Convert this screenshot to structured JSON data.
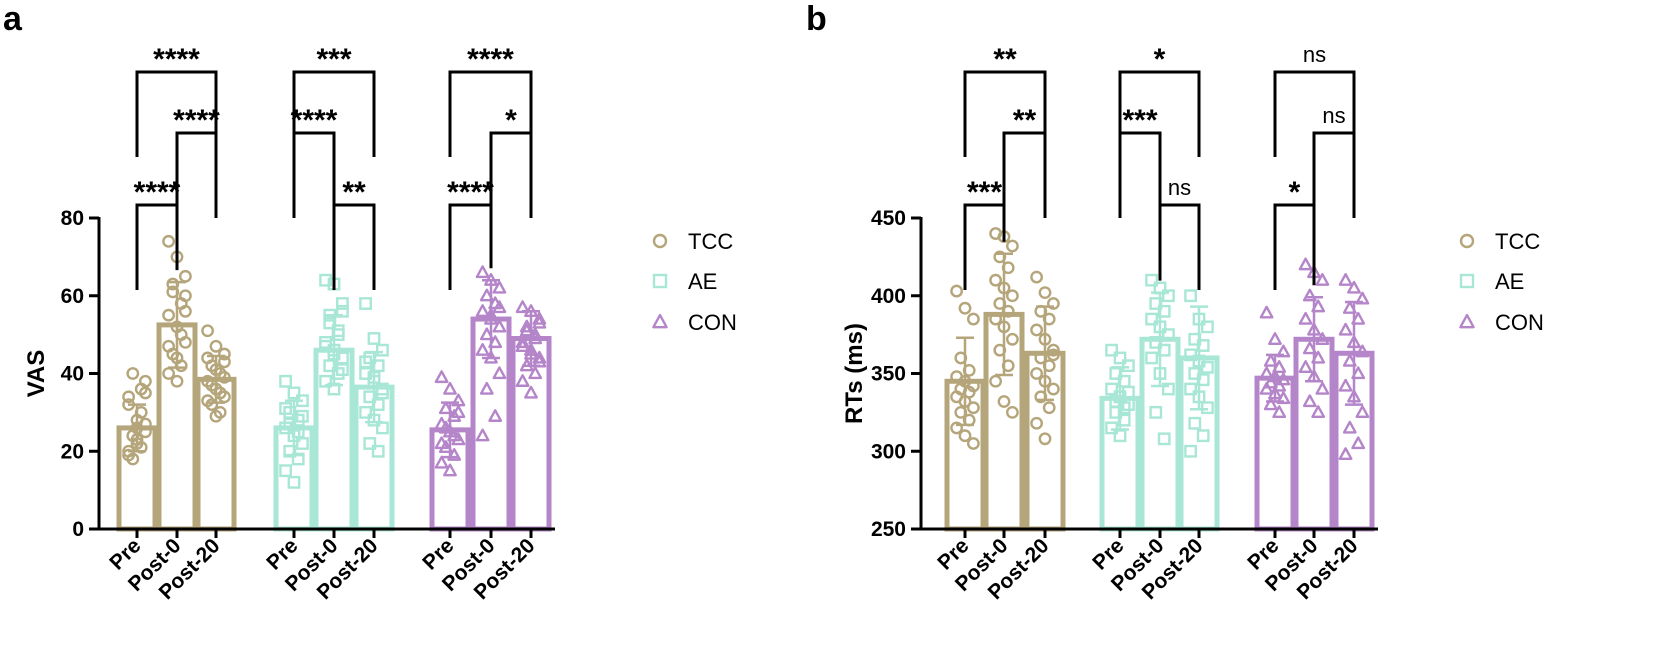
{
  "figure": {
    "panels": [
      "a",
      "b"
    ]
  },
  "groups": [
    {
      "name": "TCC",
      "color": "#B5A57A",
      "marker": "circle"
    },
    {
      "name": "AE",
      "color": "#A8E6D6",
      "marker": "square"
    },
    {
      "name": "CON",
      "color": "#B585C9",
      "marker": "triangle"
    }
  ],
  "chart_data": [
    {
      "panel": "a",
      "type": "bar",
      "ylabel": "VAS",
      "xlabel": "",
      "ylim": [
        0,
        80
      ],
      "yticks": [
        0,
        20,
        40,
        60,
        80
      ],
      "categories": [
        "Pre",
        "Post-0",
        "Post-20"
      ],
      "legend_position": "right",
      "series": [
        {
          "name": "TCC",
          "values": [
            26,
            52.5,
            38.5
          ],
          "sd": [
            6,
            11,
            6
          ],
          "points": [
            [
              20,
              22,
              25,
              18,
              30,
              34,
              28,
              38,
              24,
              36,
              19,
              23,
              27,
              40,
              21,
              32,
              26,
              35
            ],
            [
              74,
              70,
              65,
              61,
              58,
              55,
              52,
              48,
              45,
              42,
              40,
              38,
              60,
              63,
              50,
              47,
              44,
              56
            ],
            [
              51,
              47,
              45,
              42,
              40,
              38,
              36,
              34,
              32,
              30,
              44,
              41,
              39,
              37,
              35,
              33,
              29,
              43
            ]
          ]
        },
        {
          "name": "AE",
          "values": [
            26,
            46,
            36.5
          ],
          "sd": [
            7,
            9,
            9
          ],
          "points": [
            [
              38,
              35,
              33,
              30,
              28,
              26,
              24,
              22,
              20,
              18,
              15,
              12,
              29,
              27,
              25,
              31
            ],
            [
              64,
              63,
              56,
              53,
              50,
              48,
              46,
              44,
              42,
              40,
              38,
              36,
              58,
              55,
              51,
              47,
              45,
              41
            ],
            [
              58,
              49,
              46,
              44,
              42,
              40,
              38,
              36,
              34,
              32,
              30,
              28,
              26,
              22,
              20,
              43,
              39,
              35
            ]
          ]
        },
        {
          "name": "CON",
          "values": [
            25.5,
            54,
            49
          ],
          "sd": [
            7,
            10,
            7
          ],
          "points": [
            [
              39,
              36,
              33,
              31,
              29,
              27,
              25,
              23,
              21,
              19,
              17,
              15,
              30,
              26,
              24,
              22
            ],
            [
              66,
              64,
              62,
              60,
              58,
              56,
              54,
              52,
              50,
              48,
              46,
              44,
              40,
              36,
              29,
              24,
              55,
              57
            ],
            [
              57,
              56,
              54,
              52,
              50,
              48,
              46,
              44,
              42,
              40,
              38,
              35,
              53,
              51,
              49,
              47,
              45,
              43
            ]
          ]
        }
      ],
      "annotations": [
        {
          "group": "TCC",
          "from": 0,
          "to": 2,
          "label": "****"
        },
        {
          "group": "TCC",
          "from": 1,
          "to": 2,
          "label": "****"
        },
        {
          "group": "TCC",
          "from": 0,
          "to": 1,
          "label": "****"
        },
        {
          "group": "AE",
          "from": 0,
          "to": 2,
          "label": "***"
        },
        {
          "group": "AE",
          "from": 0,
          "to": 1,
          "label": "****"
        },
        {
          "group": "AE",
          "from": 1,
          "to": 2,
          "label": "**"
        },
        {
          "group": "CON",
          "from": 0,
          "to": 2,
          "label": "****"
        },
        {
          "group": "CON",
          "from": 1,
          "to": 2,
          "label": "*"
        },
        {
          "group": "CON",
          "from": 0,
          "to": 1,
          "label": "****"
        }
      ]
    },
    {
      "panel": "b",
      "type": "bar",
      "ylabel": "RTs (ms)",
      "xlabel": "",
      "ylim": [
        250,
        450
      ],
      "yticks": [
        250,
        300,
        350,
        400,
        450
      ],
      "categories": [
        "Pre",
        "Post-0",
        "Post-20"
      ],
      "legend_position": "right",
      "series": [
        {
          "name": "TCC",
          "values": [
            345,
            388,
            363
          ],
          "sd": [
            28,
            39,
            30
          ],
          "points": [
            [
              403,
              392,
              385,
              360,
              352,
              348,
              345,
              342,
              340,
              338,
              335,
              332,
              328,
              325,
              320,
              315,
              310,
              305
            ],
            [
              440,
              438,
              432,
              425,
              418,
              410,
              405,
              400,
              395,
              390,
              385,
              380,
              372,
              365,
              355,
              345,
              332,
              325
            ],
            [
              412,
              402,
              395,
              390,
              385,
              378,
              372,
              365,
              360,
              355,
              350,
              345,
              340,
              335,
              328,
              318,
              308,
              362
            ]
          ]
        },
        {
          "name": "AE",
          "values": [
            334,
            372,
            360
          ],
          "sd": [
            20,
            30,
            33
          ],
          "points": [
            [
              365,
              360,
              355,
              350,
              345,
              340,
              335,
              330,
              325,
              320,
              315,
              310,
              338,
              332,
              328
            ],
            [
              410,
              405,
              400,
              395,
              390,
              385,
              380,
              375,
              370,
              365,
              360,
              350,
              340,
              325,
              308
            ],
            [
              400,
              385,
              380,
              372,
              368,
              362,
              358,
              354,
              350,
              346,
              340,
              335,
              328,
              318,
              310,
              300
            ]
          ]
        },
        {
          "name": "CON",
          "values": [
            347,
            372,
            363
          ],
          "sd": [
            15,
            27,
            33
          ],
          "points": [
            [
              389,
              372,
              364,
              358,
              354,
              350,
              348,
              346,
              344,
              342,
              340,
              337,
              334,
              330,
              325
            ],
            [
              420,
              415,
              410,
              400,
              393,
              385,
              378,
              372,
              366,
              360,
              354,
              348,
              340,
              332,
              325
            ],
            [
              410,
              405,
              398,
              392,
              385,
              378,
              370,
              364,
              358,
              350,
              342,
              335,
              325,
              315,
              305,
              298
            ]
          ]
        }
      ],
      "annotations": [
        {
          "group": "TCC",
          "from": 0,
          "to": 2,
          "label": "**"
        },
        {
          "group": "TCC",
          "from": 1,
          "to": 2,
          "label": "**"
        },
        {
          "group": "TCC",
          "from": 0,
          "to": 1,
          "label": "***"
        },
        {
          "group": "AE",
          "from": 0,
          "to": 2,
          "label": "*"
        },
        {
          "group": "AE",
          "from": 0,
          "to": 1,
          "label": "***"
        },
        {
          "group": "AE",
          "from": 1,
          "to": 2,
          "label": "ns"
        },
        {
          "group": "CON",
          "from": 0,
          "to": 2,
          "label": "ns"
        },
        {
          "group": "CON",
          "from": 1,
          "to": 2,
          "label": "ns"
        },
        {
          "group": "CON",
          "from": 0,
          "to": 1,
          "label": "*"
        }
      ]
    }
  ]
}
